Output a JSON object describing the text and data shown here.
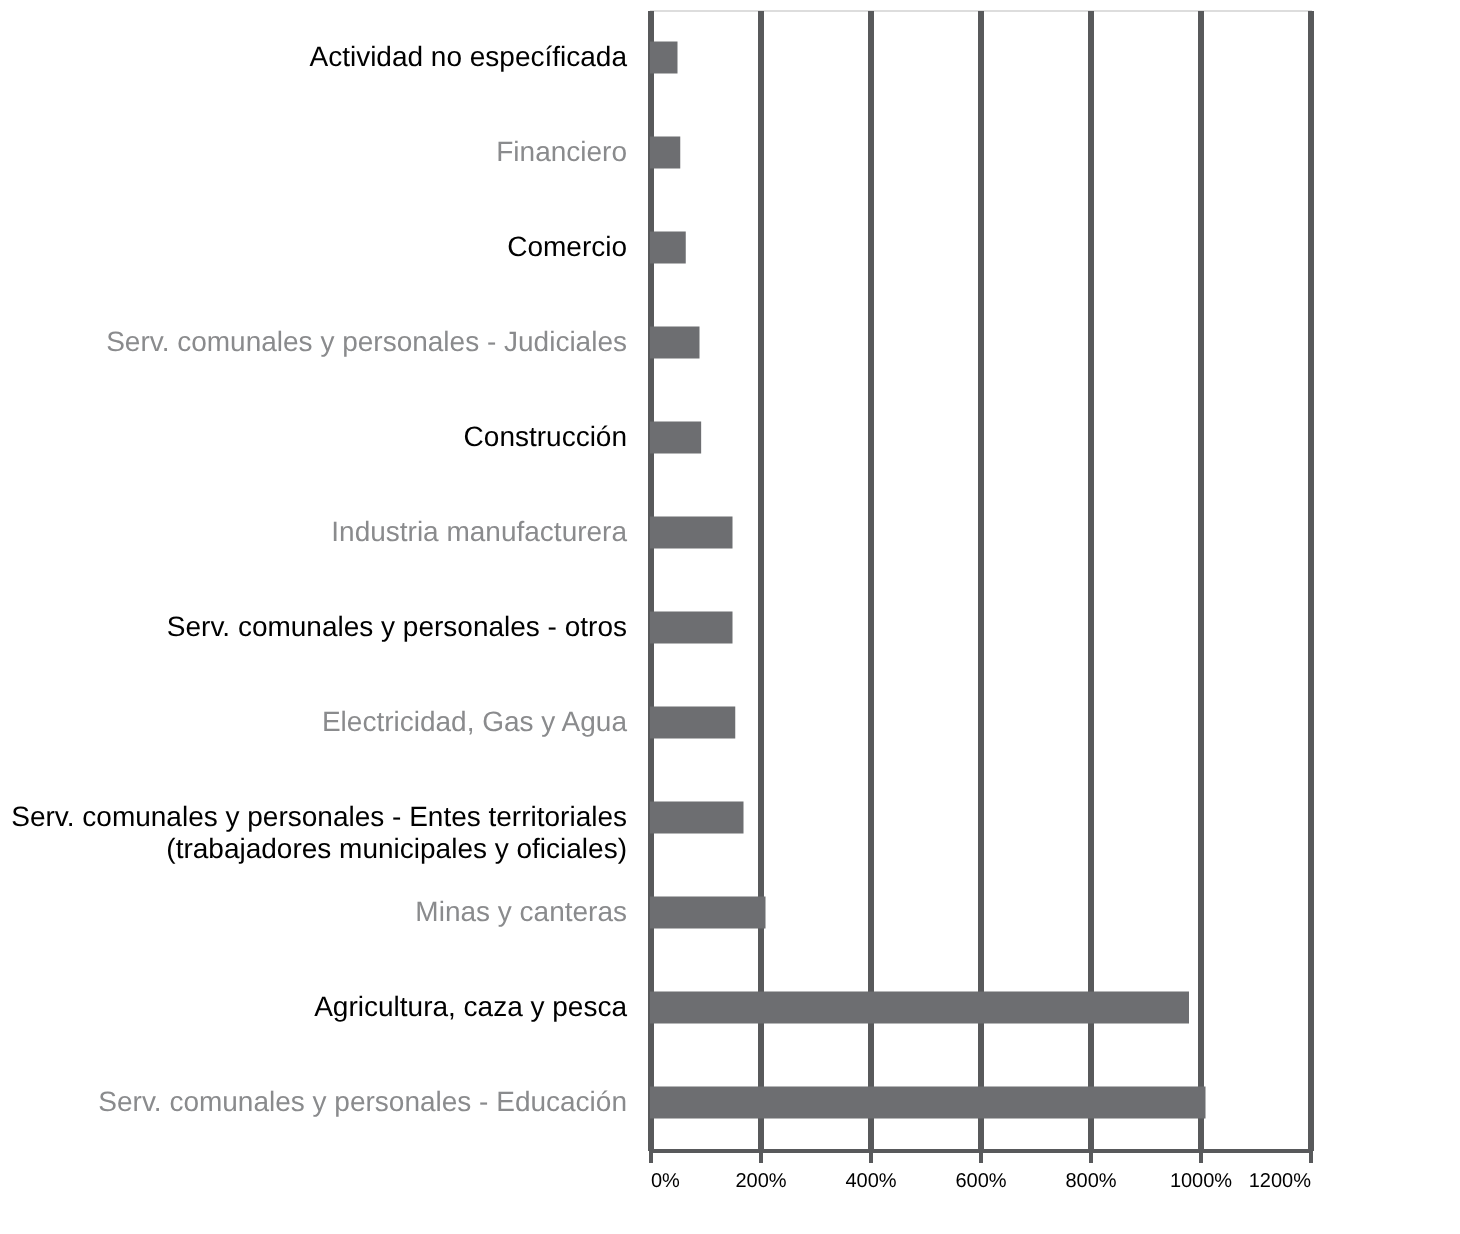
{
  "chart_data": {
    "type": "bar",
    "orientation": "horizontal",
    "categories": [
      "Actividad no específicada",
      "Financiero",
      "Comercio",
      "Serv. comunales y personales - Judiciales",
      "Construcción",
      "Industria manufacturera",
      "Serv. comunales y personales - otros",
      "Electricidad, Gas y Agua",
      "Serv. comunales y personales - Entes territoriales\n(trabajadores municipales y oficiales)",
      "Minas y canteras",
      "Agricultura, caza y pesca",
      "Serv. comunales y personales - Educación"
    ],
    "values": [
      50,
      55,
      65,
      90,
      93,
      150,
      150,
      155,
      170,
      210,
      980,
      1010
    ],
    "color": "#6d6e71",
    "xlim": [
      0,
      1200
    ],
    "xticks": [
      {
        "value": 0,
        "label": "0%"
      },
      {
        "value": 200,
        "label": "200%"
      },
      {
        "value": 400,
        "label": "400%"
      },
      {
        "value": 600,
        "label": "600%"
      },
      {
        "value": 800,
        "label": "800%"
      },
      {
        "value": 1000,
        "label": "1000%"
      },
      {
        "value": 1200,
        "label": "1200%"
      }
    ],
    "grid": "x"
  }
}
